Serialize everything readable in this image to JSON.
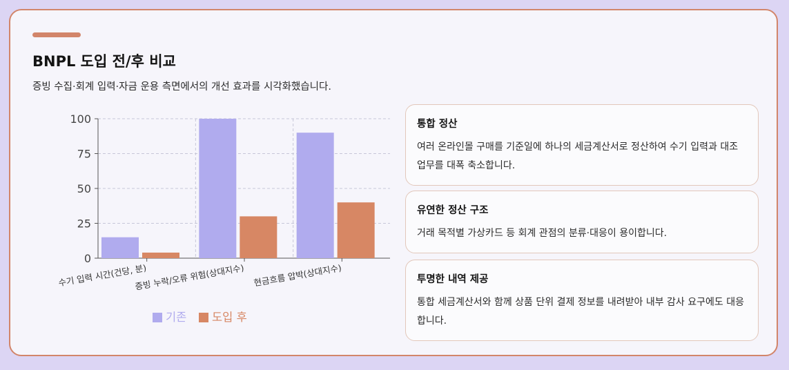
{
  "header": {
    "title": "BNPL 도입 전/후 비교",
    "subtitle": "증빙 수집·회계 입력·자금 운용 측면에서의 개선 효과를 시각화했습니다."
  },
  "chart_data": {
    "type": "bar",
    "categories": [
      "수기 입력 시간(건당, 분)",
      "증빙 누락/오류 위험(상대지수)",
      "현금흐름 압박(상대지수)"
    ],
    "series": [
      {
        "name": "기존",
        "values": [
          15,
          100,
          90
        ],
        "color": "#b0abee"
      },
      {
        "name": "도입 후",
        "values": [
          4,
          30,
          40
        ],
        "color": "#d78764"
      }
    ],
    "yticks": [
      0,
      25,
      50,
      75,
      100
    ],
    "ylim": [
      0,
      100
    ],
    "grid": true,
    "legend": "bottom"
  },
  "panels": [
    {
      "title": "통합 정산",
      "body": "여러 온라인몰 구매를 기준일에 하나의 세금계산서로 정산하여 수기 입력과 대조 업무를 대폭 축소합니다."
    },
    {
      "title": "유연한 정산 구조",
      "body": "거래 목적별 가상카드 등 회계 관점의 분류·대응이 용이합니다."
    },
    {
      "title": "투명한 내역 제공",
      "body": "통합 세금계산서와 함께 상품 단위 결제 정보를 내려받아 내부 감사 요구에도 대응합니다."
    }
  ]
}
